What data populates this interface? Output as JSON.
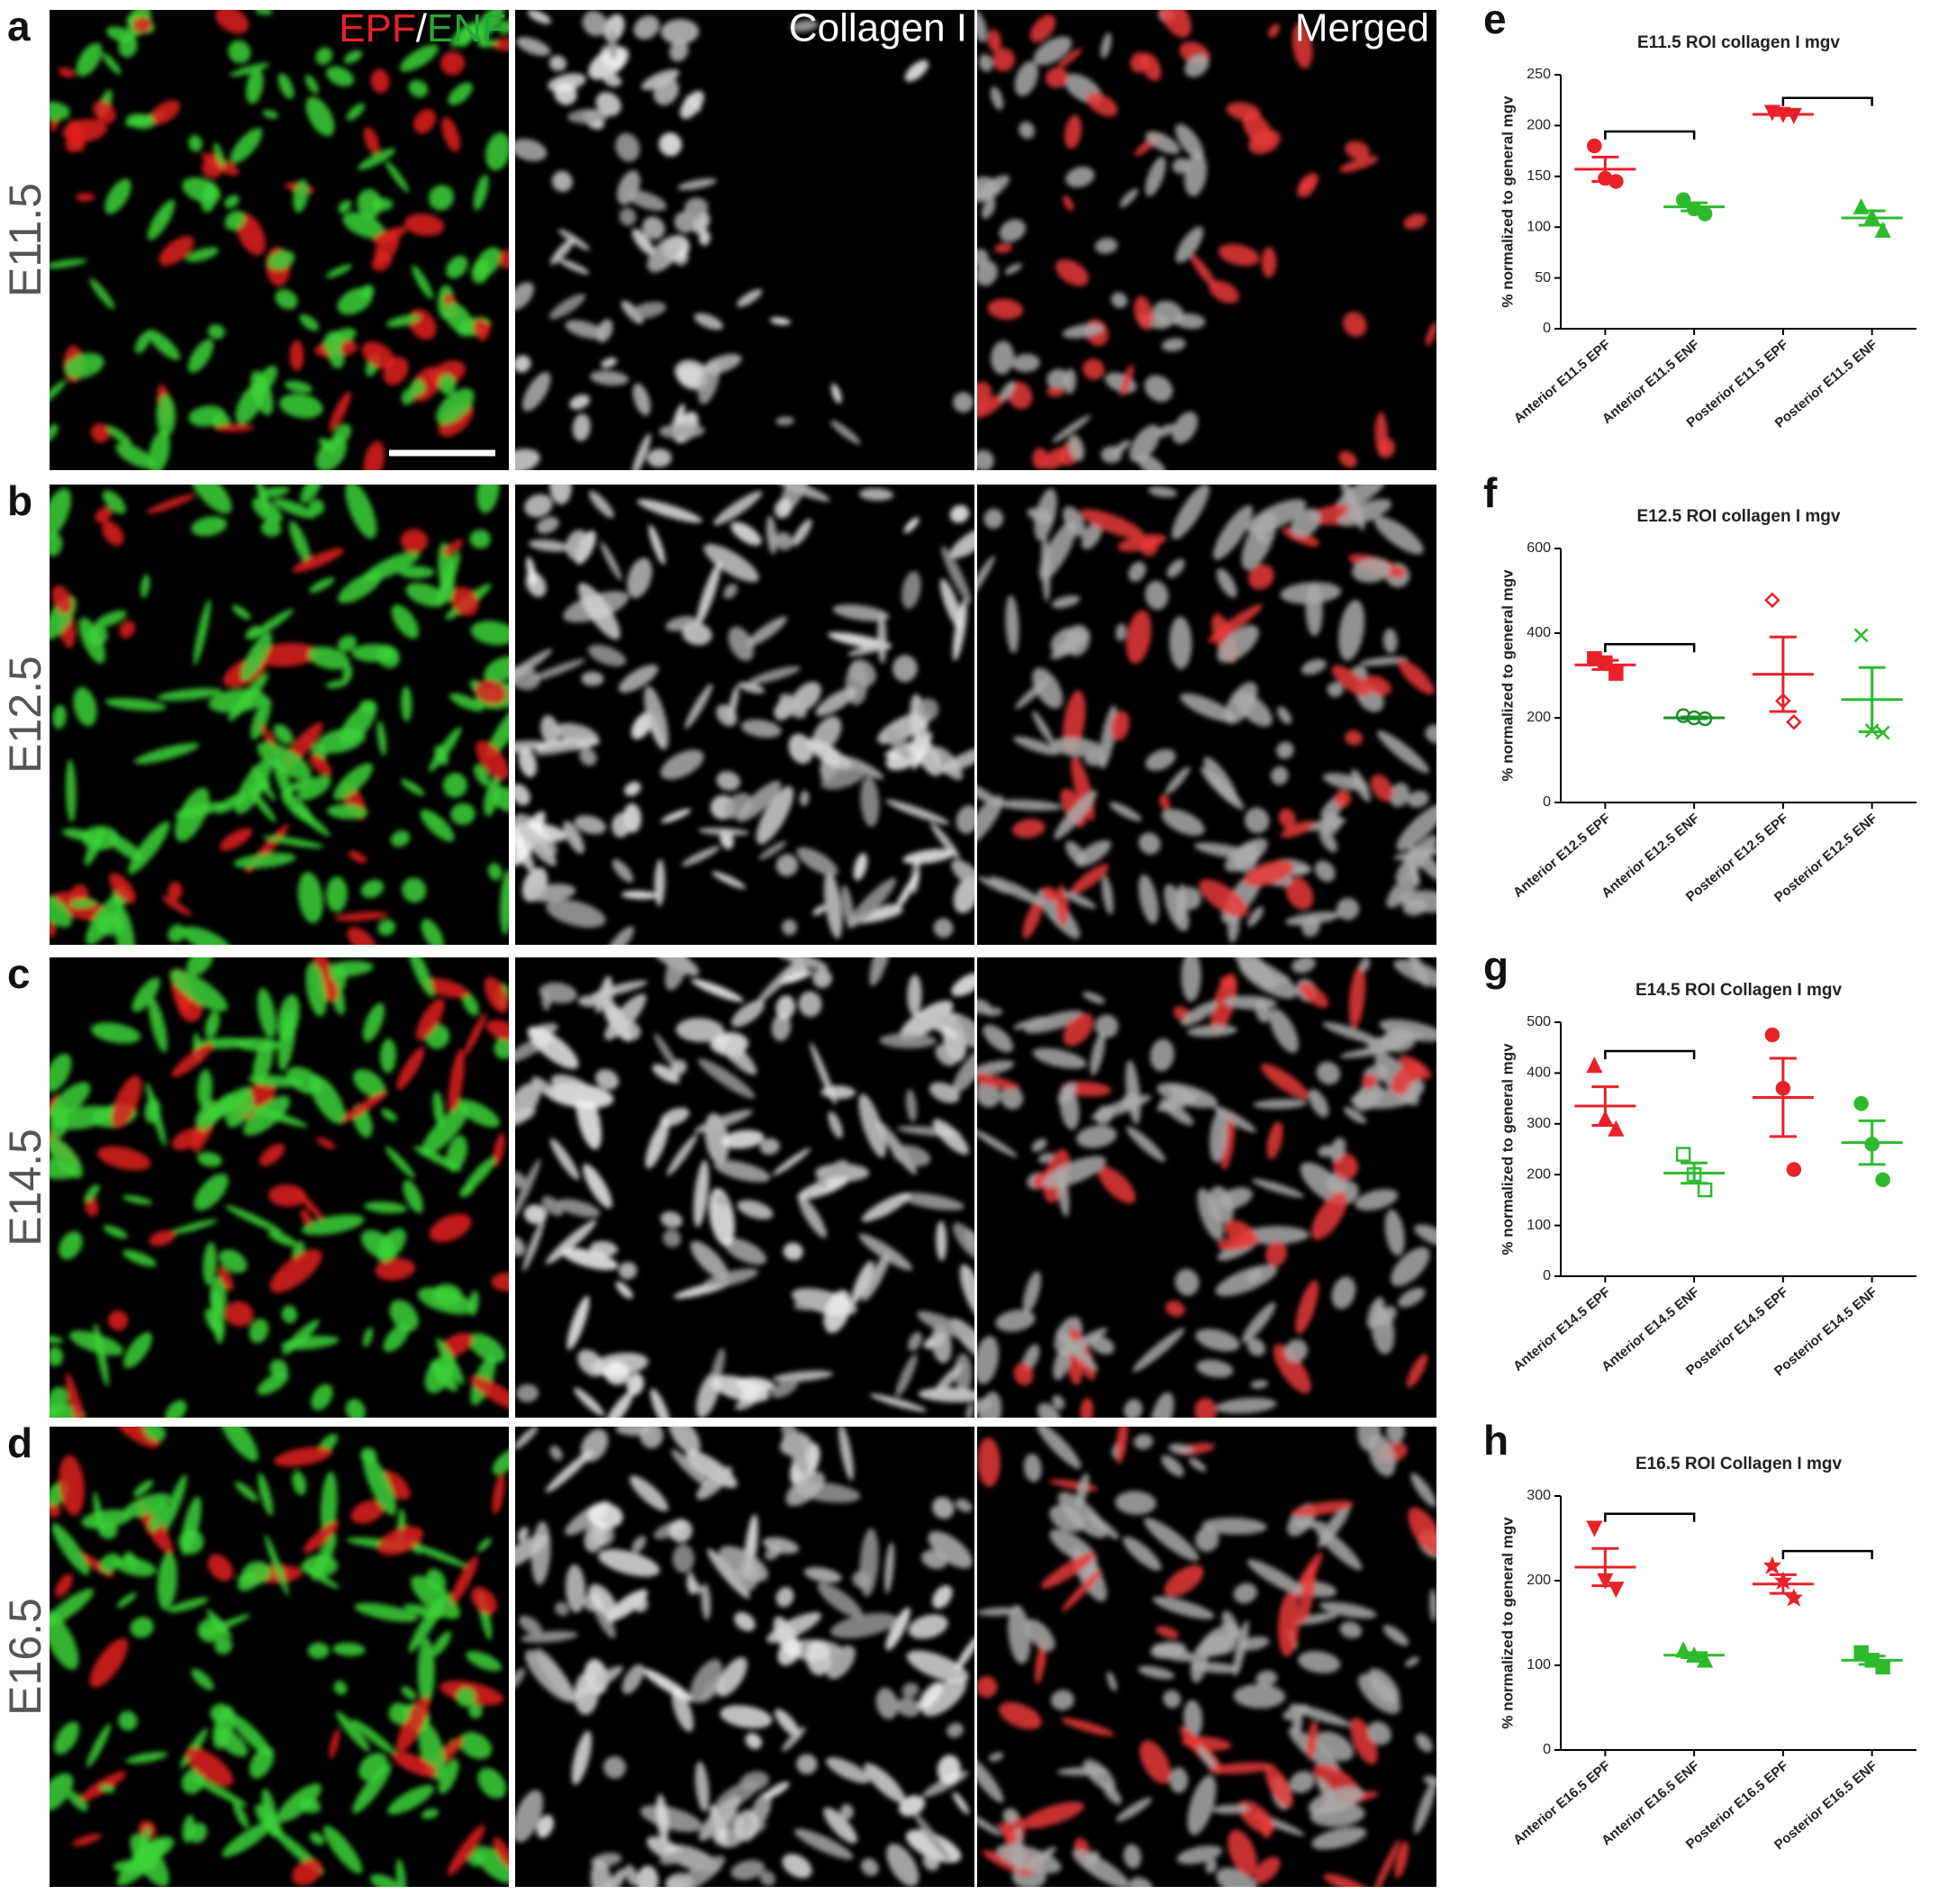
{
  "panel_labels": [
    "a",
    "b",
    "c",
    "d",
    "e",
    "f",
    "g",
    "h"
  ],
  "images": {
    "row_labels": [
      "E11.5",
      "E12.5",
      "E14.5",
      "E16.5"
    ],
    "channel_legend": [
      {
        "text": "EPF",
        "color": "#e8212b"
      },
      {
        "text": "/",
        "color": "#ffffff"
      },
      {
        "text": "ENF",
        "color": "#22a83a"
      }
    ],
    "column_titles": [
      "Collagen I",
      "Merged"
    ]
  },
  "chart_data": [
    {
      "type": "dot",
      "title": "E11.5 ROI collagen I mgv",
      "y_label": "% normalized to general mgv",
      "categories": [
        "Anterior E11.5 EPF",
        "Anterior E11.5 ENF",
        "Posterior E11.5 EPF",
        "Posterior E11.5 ENF"
      ],
      "colors": [
        "#e8212b",
        "#2dbb2d",
        "#e8212b",
        "#2dbb2d"
      ],
      "markers": [
        "circle",
        "circle",
        "triangle-down",
        "triangle"
      ],
      "points": [
        [
          180,
          148,
          145
        ],
        [
          127,
          118,
          113
        ],
        [
          213,
          211,
          210
        ],
        [
          120,
          110,
          97
        ]
      ],
      "mean": [
        157,
        120,
        211,
        109
      ],
      "sem": [
        12,
        4,
        1,
        7
      ],
      "brackets": [
        [
          0,
          1
        ],
        [
          2,
          3
        ]
      ],
      "ylim": [
        0,
        250
      ],
      "yticks": [
        0,
        50,
        100,
        150,
        200,
        250
      ]
    },
    {
      "type": "dot",
      "title": "E12.5 ROI collagen I mgv",
      "y_label": "% normalized to general mgv",
      "categories": [
        "Anterior E12.5 EPF",
        "Anterior E12.5 ENF",
        "Posterior E12.5 EPF",
        "Posterior E12.5 ENF"
      ],
      "colors": [
        "#e8212b",
        "#1a8f2a",
        "#e8212b",
        "#2dbb2d"
      ],
      "markers": [
        "square",
        "circle-open",
        "diamond-open",
        "cross"
      ],
      "points": [
        [
          340,
          330,
          305
        ],
        [
          205,
          200,
          198
        ],
        [
          478,
          240,
          190
        ],
        [
          395,
          170,
          165
        ]
      ],
      "mean": [
        325,
        200,
        303,
        243
      ],
      "sem": [
        11,
        2,
        88,
        76
      ],
      "brackets": [
        [
          0,
          1
        ]
      ],
      "ylim": [
        0,
        600
      ],
      "yticks": [
        0,
        200,
        400,
        600
      ]
    },
    {
      "type": "dot",
      "title": "E14.5 ROI Collagen  I mgv",
      "y_label": "% normalized to general mgv",
      "categories": [
        "Anterior E14.5 EPF",
        "Anterior E14.5 ENF",
        "Posterior E14.5 EPF",
        "Posterior E14.5 ENF"
      ],
      "colors": [
        "#e8212b",
        "#2dbb2d",
        "#e8212b",
        "#2dbb2d"
      ],
      "markers": [
        "triangle",
        "square-open",
        "circle",
        "circle"
      ],
      "points": [
        [
          415,
          310,
          290
        ],
        [
          240,
          200,
          170
        ],
        [
          475,
          370,
          210
        ],
        [
          340,
          260,
          190
        ]
      ],
      "mean": [
        335,
        203,
        352,
        263
      ],
      "sem": [
        38,
        20,
        77,
        43
      ],
      "brackets": [
        [
          0,
          1
        ]
      ],
      "ylim": [
        0,
        500
      ],
      "yticks": [
        0,
        100,
        200,
        300,
        400,
        500
      ]
    },
    {
      "type": "dot",
      "title": "E16.5 ROI Collagen  I mgv",
      "y_label": "% normalized to general mgv",
      "categories": [
        "Anterior E16.5 EPF",
        "Anterior E16.5 ENF",
        "Posterior E16.5 EPF",
        "Posterior E16.5 ENF"
      ],
      "colors": [
        "#e8212b",
        "#2dbb2d",
        "#e8212b",
        "#2dbb2d"
      ],
      "markers": [
        "triangle-down",
        "triangle",
        "star",
        "square"
      ],
      "points": [
        [
          262,
          200,
          190
        ],
        [
          118,
          112,
          106
        ],
        [
          218,
          200,
          180
        ],
        [
          115,
          106,
          98
        ]
      ],
      "mean": [
        216,
        112,
        196,
        106
      ],
      "sem": [
        22,
        3,
        11,
        5
      ],
      "brackets": [
        [
          0,
          1
        ],
        [
          2,
          3
        ]
      ],
      "ylim": [
        0,
        300
      ],
      "yticks": [
        0,
        100,
        200,
        300
      ]
    }
  ]
}
